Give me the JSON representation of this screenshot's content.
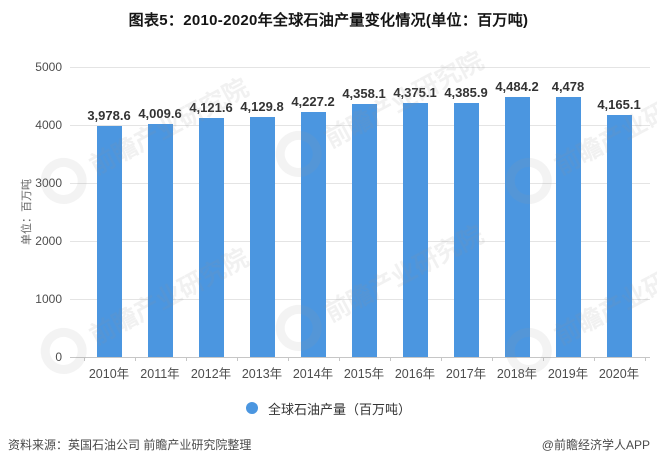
{
  "title": "图表5：2010-2020年全球石油产量变化情况(单位：百万吨)",
  "chart_data": {
    "type": "bar",
    "categories": [
      "2010年",
      "2011年",
      "2012年",
      "2013年",
      "2014年",
      "2015年",
      "2016年",
      "2017年",
      "2018年",
      "2019年",
      "2020年"
    ],
    "values": [
      3978.6,
      4009.6,
      4121.6,
      4129.8,
      4227.2,
      4358.1,
      4375.1,
      4385.9,
      4484.2,
      4478,
      4165.1
    ],
    "value_labels": [
      "3,978.6",
      "4,009.6",
      "4,121.6",
      "4,129.8",
      "4,227.2",
      "4,358.1",
      "4,375.1",
      "4,385.9",
      "4,484.2",
      "4,478",
      "4,165.1"
    ],
    "title": "图表5：2010-2020年全球石油产量变化情况(单位：百万吨)",
    "xlabel": "",
    "ylabel": "单位：百万吨",
    "yticks": [
      0,
      1000,
      2000,
      3000,
      4000,
      5000
    ],
    "ylim": [
      0,
      5000
    ],
    "grid": true,
    "legend": [
      "全球石油产量（百万吨）"
    ],
    "legend_position": "bottom",
    "bar_color": "#4B96E0"
  },
  "legend": {
    "series_label": "全球石油产量（百万吨）"
  },
  "y_axis_unit": "单位：百万吨",
  "footer": {
    "source": "资料来源：英国石油公司 前瞻产业研究院整理",
    "credit": "@前瞻经济学人APP"
  },
  "watermark": {
    "text": "前瞻产业研究院"
  }
}
